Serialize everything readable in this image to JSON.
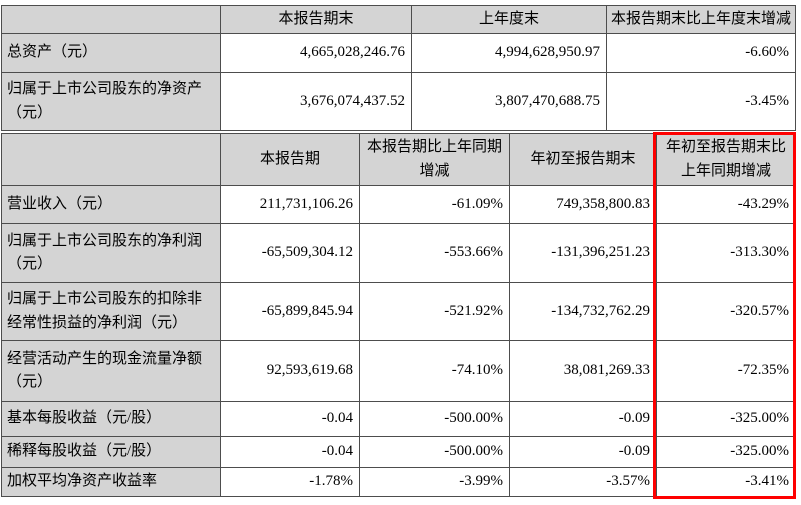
{
  "summary_table": {
    "headers": [
      "",
      "本报告期末",
      "上年度末",
      "本报告期末比上年度末增减"
    ],
    "rows": [
      {
        "label": "总资产（元）",
        "values": [
          "4,665,028,246.76",
          "4,994,628,950.97",
          "-6.60%"
        ]
      },
      {
        "label": "归属于上市公司股东的净资产（元）",
        "values": [
          "3,676,074,437.52",
          "3,807,470,688.75",
          "-3.45%"
        ]
      }
    ]
  },
  "period_table": {
    "headers": [
      "",
      "本报告期",
      "本报告期比上年同期增减",
      "年初至报告期末",
      "年初至报告期末比上年同期增减"
    ],
    "rows": [
      {
        "label": "营业收入（元）",
        "values": [
          "211,731,106.26",
          "-61.09%",
          "749,358,800.83",
          "-43.29%"
        ]
      },
      {
        "label": "归属于上市公司股东的净利润（元）",
        "values": [
          "-65,509,304.12",
          "-553.66%",
          "-131,396,251.23",
          "-313.30%"
        ]
      },
      {
        "label": "归属于上市公司股东的扣除非经常性损益的净利润（元）",
        "values": [
          "-65,899,845.94",
          "-521.92%",
          "-134,732,762.29",
          "-320.57%"
        ]
      },
      {
        "label": "经营活动产生的现金流量净额（元）",
        "values": [
          "92,593,619.68",
          "-74.10%",
          "38,081,269.33",
          "-72.35%"
        ]
      },
      {
        "label": "基本每股收益（元/股）",
        "values": [
          "-0.04",
          "-500.00%",
          "-0.09",
          "-325.00%"
        ]
      },
      {
        "label": "稀释每股收益（元/股）",
        "values": [
          "-0.04",
          "-500.00%",
          "-0.09",
          "-325.00%"
        ]
      },
      {
        "label": "加权平均净资产收益率",
        "values": [
          "-1.78%",
          "-3.99%",
          "-3.57%",
          "-3.41%"
        ]
      }
    ]
  },
  "highlight": {
    "column": "年初至报告期末比上年同期增减",
    "border_color": "#fe0000"
  },
  "colors": {
    "header_bg": "#d4d4d4",
    "grid": "#4d4d4d",
    "cell_bg": "#ffffff"
  }
}
